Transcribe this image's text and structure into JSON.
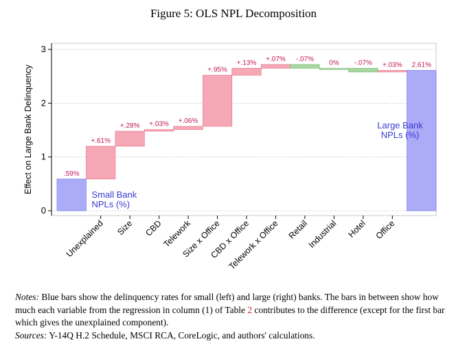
{
  "figure_title": "Figure 5: OLS NPL Decomposition",
  "notes": {
    "label": "Notes:",
    "text_before_ref": "Blue bars show the delinquency rates for small (left) and large (right) banks. The bars in between show how much each variable from the regression in column (1) of Table",
    "table_ref": "2",
    "text_after_ref": "contributes to the difference (except for the first bar which gives the unexplained component).",
    "sources_label": "Sources:",
    "sources_text": "Y-14Q H.2 Schedule, MSCI RCA, CoreLogic, and authors' calculations."
  },
  "colors": {
    "bank_bar": "#ababf7",
    "bank_bar_edge": "#8484ee",
    "positive": "#f7a8b6",
    "positive_edge": "#e36c84",
    "negative": "#a8d6a0",
    "negative_edge": "#6fb766",
    "zero": "#bcdcbc",
    "data_label": "#c2185b",
    "bank_label": "#3a3ad6"
  },
  "chart_data": {
    "type": "bar",
    "subtype": "waterfall",
    "title": "",
    "ylabel": "Effect on Large Bank Delinquency",
    "xlabel": "",
    "ylim": [
      0,
      3
    ],
    "yticks": [
      "0",
      "1",
      "2",
      "3"
    ],
    "grid": "horizontal dashed",
    "start": {
      "name": "Small Bank NPLs (%)",
      "label_lines": [
        "Small Bank",
        "NPLs (%)"
      ],
      "value": 0.59,
      "label": ".59%"
    },
    "steps": [
      {
        "category": "Unexplained",
        "value": 0.61,
        "label": "+.61%"
      },
      {
        "category": "Size",
        "value": 0.28,
        "label": "+.28%"
      },
      {
        "category": "CBD",
        "value": 0.03,
        "label": "+.03%"
      },
      {
        "category": "Telework",
        "value": 0.06,
        "label": "+.06%"
      },
      {
        "category": "Size x Office",
        "value": 0.95,
        "label": "+.95%"
      },
      {
        "category": "CBD x Office",
        "value": 0.13,
        "label": "+.13%"
      },
      {
        "category": "Telework x Office",
        "value": 0.07,
        "label": "+.07%"
      },
      {
        "category": "Retail",
        "value": -0.07,
        "label": "-.07%"
      },
      {
        "category": "Industrial",
        "value": 0.0,
        "label": "0%"
      },
      {
        "category": "Hotel",
        "value": -0.07,
        "label": "-.07%"
      },
      {
        "category": "Office",
        "value": 0.03,
        "label": "+.03%"
      }
    ],
    "end": {
      "name": "Large Bank NPLs (%)",
      "label_lines": [
        "Large Bank",
        "NPLs (%)"
      ],
      "value": 2.61,
      "label": "2.61%"
    }
  }
}
